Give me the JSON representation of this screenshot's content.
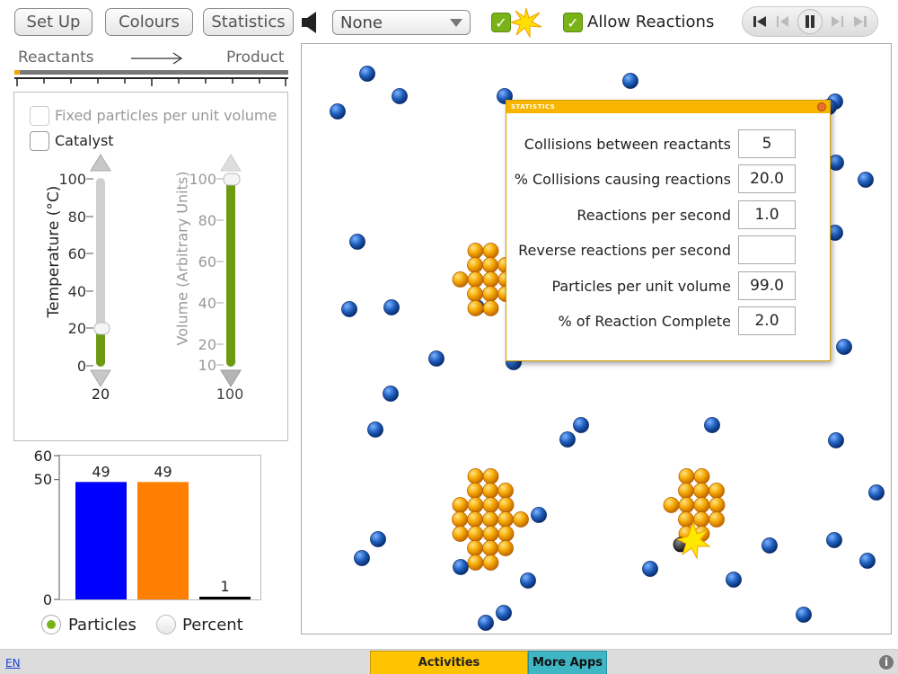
{
  "toolbar": {
    "setup_label": "Set Up",
    "colours_label": "Colours",
    "statistics_label": "Statistics",
    "sound_icon": "speaker-icon",
    "dropdown_value": "None",
    "reaction_check_icon": "star-icon",
    "allow_reactions_label": "Allow Reactions",
    "allow_reactions_checked": true
  },
  "player": {
    "buttons": [
      "skip-to-start-icon",
      "step-back-icon",
      "pause-icon",
      "step-forward-icon",
      "skip-to-end-icon"
    ]
  },
  "progress": {
    "reactants_label": "Reactants",
    "product_label": "Product",
    "fraction": 0.02
  },
  "controls": {
    "fixed_label": "Fixed particles per unit volume",
    "catalyst_label": "Catalyst",
    "temperature": {
      "axis_label": "Temperature (°C)",
      "ticks": [
        "100",
        "80",
        "60",
        "40",
        "20",
        "0"
      ],
      "value": "20",
      "level": 0.2
    },
    "volume": {
      "axis_label": "Volume (Arbitrary Units)",
      "ticks": [
        "100",
        "80",
        "60",
        "40",
        "20",
        "10"
      ],
      "value": "100",
      "level": 1.0
    }
  },
  "chart_data": {
    "type": "bar",
    "categories": [
      "",
      "",
      ""
    ],
    "values": [
      49,
      49,
      1
    ],
    "data_labels": [
      "49",
      "49",
      "1"
    ],
    "colors": [
      "#0000ff",
      "#ff8000",
      "#000000"
    ],
    "yticks": [
      "60",
      "50",
      "0"
    ],
    "ylim": [
      0,
      60
    ]
  },
  "display_mode": {
    "particles_label": "Particles",
    "percent_label": "Percent",
    "selected": "Particles"
  },
  "statistics": {
    "title": "STATISTICS",
    "rows": [
      {
        "label": "Collisions between reactants",
        "value": "5"
      },
      {
        "label": "% Collisions causing reactions",
        "value": "20.0"
      },
      {
        "label": "Reactions per second",
        "value": "1.0"
      },
      {
        "label": "Reverse reactions per second",
        "value": ""
      },
      {
        "label": "Particles per unit volume",
        "value": "99.0"
      },
      {
        "label": "% of Reaction Complete",
        "value": "2.0"
      }
    ]
  },
  "footer": {
    "language": "EN",
    "activities_label": "Activities",
    "more_apps_label": "More Apps",
    "info_icon": "info-icon"
  },
  "colors": {
    "reactant": "#1f5fbf",
    "solid": "#f5a500",
    "accent_green": "#7ab317",
    "slider_green": "#6e9a12",
    "stats_header": "#f7b500"
  }
}
